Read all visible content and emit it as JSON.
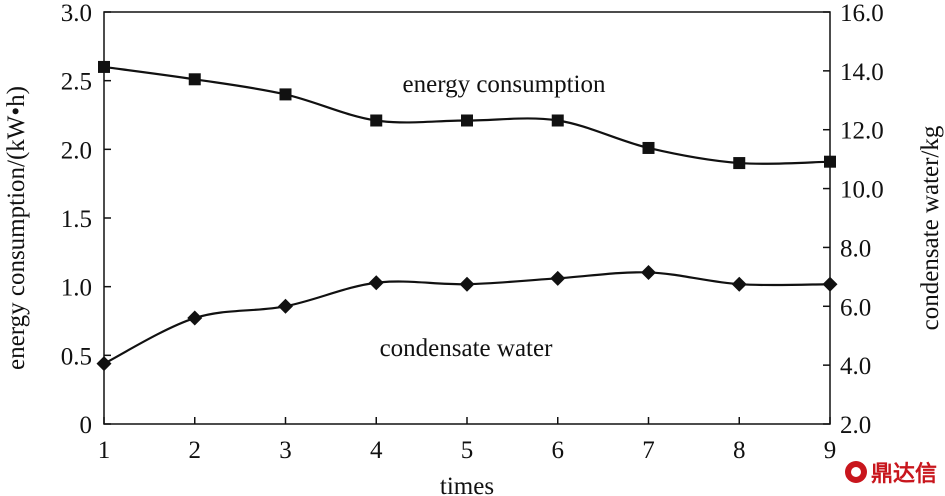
{
  "chart_data": {
    "type": "line",
    "x": [
      1,
      2,
      3,
      4,
      5,
      6,
      7,
      8,
      9
    ],
    "xlabel": "times",
    "xlim": [
      1,
      9
    ],
    "x_ticks": [
      "1",
      "2",
      "3",
      "4",
      "5",
      "6",
      "7",
      "8",
      "9"
    ],
    "y_left": {
      "label": "energy consumption/(kW•h)",
      "lim": [
        0,
        3.0
      ],
      "ticks": [
        "0",
        "0.5",
        "1.0",
        "1.5",
        "2.0",
        "2.5",
        "3.0"
      ]
    },
    "y_right": {
      "label": "condensate water/kg",
      "lim": [
        2.0,
        16.0
      ],
      "ticks": [
        "2.0",
        "4.0",
        "6.0",
        "8.0",
        "10.0",
        "12.0",
        "14.0",
        "16.0"
      ]
    },
    "series": [
      {
        "name": "energy consumption",
        "axis": "left",
        "marker": "square",
        "values": [
          2.6,
          2.51,
          2.4,
          2.21,
          2.21,
          2.21,
          2.01,
          1.9,
          1.91
        ]
      },
      {
        "name": "condensate water",
        "axis": "right",
        "marker": "diamond",
        "values": [
          4.05,
          5.6,
          6.0,
          6.8,
          6.75,
          6.95,
          7.15,
          6.75,
          6.75
        ]
      }
    ],
    "grid": false,
    "legend": "none"
  },
  "watermark": {
    "text": "鼎达信"
  },
  "colors": {
    "line": "#111111",
    "watermark": "#c8161d"
  }
}
